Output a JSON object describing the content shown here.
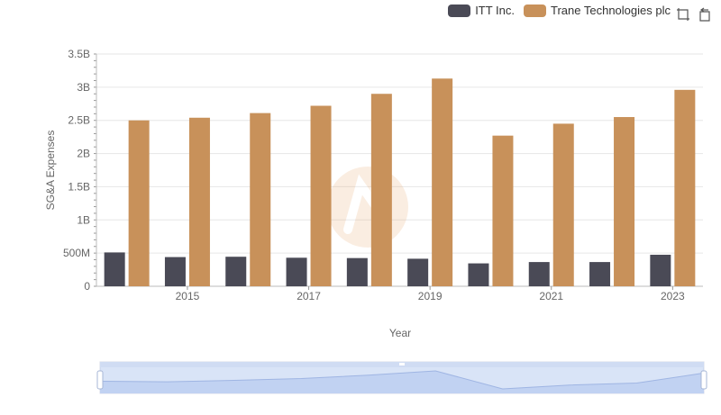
{
  "chart_data": {
    "type": "bar",
    "title": "",
    "xlabel": "Year",
    "ylabel": "SG&A Expenses",
    "categories": [
      "2014",
      "2015",
      "2016",
      "2017",
      "2018",
      "2019",
      "2020",
      "2021",
      "2022",
      "2023"
    ],
    "x_tick_labels": [
      "2015",
      "2017",
      "2019",
      "2021",
      "2023"
    ],
    "y_ticks": [
      0,
      500000000,
      1000000000,
      1500000000,
      2000000000,
      2500000000,
      3000000000,
      3500000000
    ],
    "y_tick_labels": [
      "0",
      "500M",
      "1B",
      "1.5B",
      "2B",
      "2.5B",
      "3B",
      "3.5B"
    ],
    "ylim": [
      0,
      3500000000
    ],
    "grid": true,
    "legend_position": "top-right",
    "series": [
      {
        "name": "ITT Inc.",
        "color": "#4a4a56",
        "values": [
          510000000,
          440000000,
          445000000,
          430000000,
          425000000,
          415000000,
          345000000,
          365000000,
          365000000,
          475000000
        ]
      },
      {
        "name": "Trane Technologies plc",
        "color": "#c8915a",
        "values": [
          2500000000,
          2540000000,
          2610000000,
          2720000000,
          2900000000,
          3130000000,
          2270000000,
          2450000000,
          2550000000,
          2960000000
        ]
      }
    ]
  },
  "legend": {
    "items": [
      {
        "label": "ITT Inc.",
        "color": "#4a4a56"
      },
      {
        "label": "Trane Technologies plc",
        "color": "#c8915a"
      }
    ]
  },
  "toolbox": {
    "icons": [
      "zoom-icon",
      "restore-icon"
    ]
  },
  "data_zoom": {
    "range_percent": [
      0,
      100
    ]
  }
}
